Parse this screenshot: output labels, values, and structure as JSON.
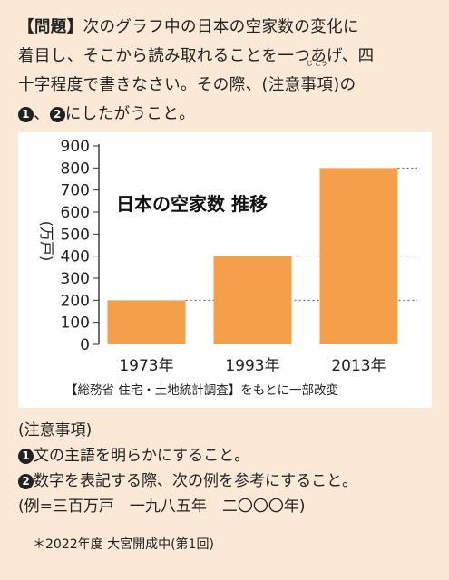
{
  "question": {
    "label": "【問題】",
    "line1_text": "次のグラフ中の日本の空家数の変化に",
    "line2": "着目し、そこから読み取れることを一つあげ、四",
    "line3_pre": "十字程度で書きなさい。その際、(注意",
    "ruby_base": "事項",
    "ruby_text": "じ こう",
    "line3_post": ")の",
    "line4_badge1": "1",
    "line4_sep": "、",
    "line4_badge2": "2",
    "line4_text": "にしたがうこと。"
  },
  "chart_data": {
    "type": "bar",
    "title": "日本の空家数 推移",
    "ylabel": "(万戸)",
    "categories": [
      "1973年",
      "1993年",
      "2013年"
    ],
    "values": [
      200,
      400,
      800
    ],
    "ylim": [
      0,
      900
    ],
    "yticks": [
      "0",
      "100",
      "200",
      "300",
      "400",
      "500",
      "600",
      "700",
      "800",
      "900"
    ],
    "grid": true,
    "bar_color": "#f4a04a",
    "source": "【総務省 住宅・土地統計調査】をもとに一部改変"
  },
  "notes": {
    "header": "(注意事項)",
    "item1_badge": "1",
    "item1_text": "文の主語を明らかにすること。",
    "item2_badge": "2",
    "item2_text": "数字を表記する際、次の例を参考にすること。",
    "example": "(例=三百万戸　一九八五年　二〇〇〇年)"
  },
  "footer": "＊2022年度 大宮開成中(第1回)"
}
